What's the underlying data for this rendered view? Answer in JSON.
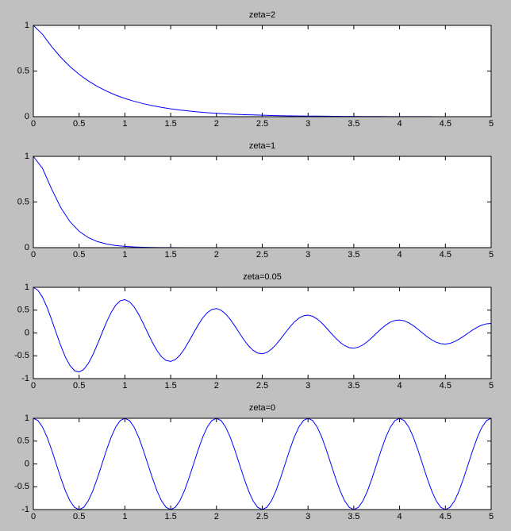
{
  "chart_data": [
    {
      "type": "line",
      "title": "zeta=2",
      "x": [
        0,
        0.1,
        0.2,
        0.3,
        0.4,
        0.5,
        0.6,
        0.7,
        0.8,
        0.9,
        1,
        1.1,
        1.2,
        1.3,
        1.4,
        1.5,
        1.6,
        1.7,
        1.8,
        1.9,
        2,
        2.1,
        2.2,
        2.3,
        2.4,
        2.5,
        2.6,
        2.7,
        2.8,
        2.9,
        3,
        3.1,
        3.2,
        3.3,
        3.4,
        3.5,
        3.6,
        3.7,
        3.8,
        3.9,
        4,
        4.1,
        4.2,
        4.3,
        4.4,
        4.5,
        4.6,
        4.7,
        4.8,
        4.9,
        5
      ],
      "series": [
        {
          "color": "#0000ff",
          "values": [
            1,
            0.903,
            0.768,
            0.65,
            0.549,
            0.464,
            0.392,
            0.331,
            0.28,
            0.236,
            0.2,
            0.169,
            0.143,
            0.121,
            0.102,
            0.086,
            0.073,
            0.062,
            0.052,
            0.044,
            0.037,
            0.031,
            0.026,
            0.022,
            0.019,
            0.016,
            0.013,
            0.011,
            0.009,
            0.008,
            0.007,
            0.006,
            0.005,
            0.004,
            0.003,
            0.003,
            0.002,
            0.002,
            0.002,
            0.001,
            0.001,
            0.001,
            0.001,
            0.001,
            0,
            0,
            0,
            0,
            0,
            0,
            0
          ]
        }
      ],
      "xlim": [
        0,
        5
      ],
      "ylim": [
        0,
        1
      ],
      "xticks": [
        0,
        0.5,
        1,
        1.5,
        2,
        2.5,
        3,
        3.5,
        4,
        4.5,
        5
      ],
      "yticks": [
        0,
        0.5,
        1
      ]
    },
    {
      "type": "line",
      "title": "zeta=1",
      "x": [
        0,
        0.1,
        0.2,
        0.3,
        0.4,
        0.5,
        0.6,
        0.7,
        0.8,
        0.9,
        1,
        1.1,
        1.2,
        1.3,
        1.4,
        1.5,
        1.6,
        1.7,
        1.8,
        1.9,
        2,
        2.1,
        2.2,
        2.3,
        2.4,
        2.5,
        2.6,
        2.7,
        2.8,
        2.9,
        3,
        3.1,
        3.2,
        3.3,
        3.4,
        3.5,
        3.6,
        3.7,
        3.8,
        3.9,
        4,
        4.1,
        4.2,
        4.3,
        4.4,
        4.5,
        4.6,
        4.7,
        4.8,
        4.9,
        5
      ],
      "series": [
        {
          "color": "#0000ff",
          "values": [
            1,
            0.869,
            0.642,
            0.438,
            0.285,
            0.179,
            0.11,
            0.066,
            0.04,
            0.023,
            0.014,
            0.008,
            0.004,
            0.002,
            0.001,
            0.001,
            0,
            0,
            0,
            0,
            0,
            0,
            0,
            0,
            0,
            0,
            0,
            0,
            0,
            0,
            0,
            0,
            0,
            0,
            0,
            0,
            0,
            0,
            0,
            0,
            0,
            0,
            0,
            0,
            0,
            0,
            0,
            0,
            0,
            0,
            0
          ]
        }
      ],
      "xlim": [
        0,
        5
      ],
      "ylim": [
        0,
        1
      ],
      "xticks": [
        0,
        0.5,
        1,
        1.5,
        2,
        2.5,
        3,
        3.5,
        4,
        4.5,
        5
      ],
      "yticks": [
        0,
        0.5,
        1
      ]
    },
    {
      "type": "line",
      "title": "zeta=0.05",
      "x": [
        0,
        0.05,
        0.1,
        0.15,
        0.2,
        0.25,
        0.3,
        0.35,
        0.4,
        0.45,
        0.5,
        0.55,
        0.6,
        0.65,
        0.7,
        0.75,
        0.8,
        0.85,
        0.9,
        0.95,
        1,
        1.05,
        1.1,
        1.15,
        1.2,
        1.25,
        1.3,
        1.35,
        1.4,
        1.45,
        1.5,
        1.55,
        1.6,
        1.65,
        1.7,
        1.75,
        1.8,
        1.85,
        1.9,
        1.95,
        2,
        2.05,
        2.1,
        2.15,
        2.2,
        2.25,
        2.3,
        2.35,
        2.4,
        2.45,
        2.5,
        2.55,
        2.6,
        2.65,
        2.7,
        2.75,
        2.8,
        2.85,
        2.9,
        2.95,
        3,
        3.05,
        3.1,
        3.15,
        3.2,
        3.25,
        3.3,
        3.35,
        3.4,
        3.45,
        3.5,
        3.55,
        3.6,
        3.65,
        3.7,
        3.75,
        3.8,
        3.85,
        3.9,
        3.95,
        4,
        4.05,
        4.1,
        4.15,
        4.2,
        4.25,
        4.3,
        4.35,
        4.4,
        4.45,
        4.5,
        4.55,
        4.6,
        4.65,
        4.7,
        4.75,
        4.8,
        4.85,
        4.9,
        4.95,
        5
      ],
      "series": [
        {
          "color": "#0000ff",
          "values": [
            1,
            0.936,
            0.784,
            0.561,
            0.29,
            0,
            -0.281,
            -0.527,
            -0.713,
            -0.826,
            -0.855,
            -0.8,
            -0.67,
            -0.479,
            -0.248,
            0,
            0.24,
            0.45,
            0.61,
            0.706,
            0.73,
            0.684,
            0.573,
            0.41,
            0.212,
            0,
            -0.205,
            -0.385,
            -0.521,
            -0.603,
            -0.624,
            -0.584,
            -0.489,
            -0.35,
            -0.181,
            0,
            0.175,
            0.329,
            0.446,
            0.516,
            0.534,
            0.499,
            0.418,
            0.299,
            0.155,
            0,
            -0.15,
            -0.281,
            -0.38,
            -0.441,
            -0.456,
            -0.427,
            -0.357,
            -0.256,
            -0.132,
            0,
            0.128,
            0.24,
            0.325,
            0.377,
            0.39,
            0.365,
            0.306,
            0.219,
            0.113,
            0,
            -0.11,
            -0.205,
            -0.278,
            -0.322,
            -0.333,
            -0.312,
            -0.261,
            -0.187,
            -0.097,
            0,
            0.094,
            0.175,
            0.238,
            0.275,
            0.285,
            0.266,
            0.223,
            0.16,
            0.083,
            0,
            -0.08,
            -0.15,
            -0.203,
            -0.235,
            -0.243,
            -0.228,
            -0.191,
            -0.136,
            -0.071,
            0,
            0.068,
            0.128,
            0.174,
            0.201,
            0.208
          ]
        }
      ],
      "xlim": [
        0,
        5
      ],
      "ylim": [
        -1,
        1
      ],
      "xticks": [
        0,
        0.5,
        1,
        1.5,
        2,
        2.5,
        3,
        3.5,
        4,
        4.5,
        5
      ],
      "yticks": [
        -1,
        -0.5,
        0,
        0.5,
        1
      ]
    },
    {
      "type": "line",
      "title": "zeta=0",
      "x": [
        0,
        0.05,
        0.1,
        0.15,
        0.2,
        0.25,
        0.3,
        0.35,
        0.4,
        0.45,
        0.5,
        0.55,
        0.6,
        0.65,
        0.7,
        0.75,
        0.8,
        0.85,
        0.9,
        0.95,
        1,
        1.05,
        1.1,
        1.15,
        1.2,
        1.25,
        1.3,
        1.35,
        1.4,
        1.45,
        1.5,
        1.55,
        1.6,
        1.65,
        1.7,
        1.75,
        1.8,
        1.85,
        1.9,
        1.95,
        2,
        2.05,
        2.1,
        2.15,
        2.2,
        2.25,
        2.3,
        2.35,
        2.4,
        2.45,
        2.5,
        2.55,
        2.6,
        2.65,
        2.7,
        2.75,
        2.8,
        2.85,
        2.9,
        2.95,
        3,
        3.05,
        3.1,
        3.15,
        3.2,
        3.25,
        3.3,
        3.35,
        3.4,
        3.45,
        3.5,
        3.55,
        3.6,
        3.65,
        3.7,
        3.75,
        3.8,
        3.85,
        3.9,
        3.95,
        4,
        4.05,
        4.1,
        4.15,
        4.2,
        4.25,
        4.3,
        4.35,
        4.4,
        4.45,
        4.5,
        4.55,
        4.6,
        4.65,
        4.7,
        4.75,
        4.8,
        4.85,
        4.9,
        4.95,
        5
      ],
      "series": [
        {
          "color": "#0000ff",
          "values": [
            1,
            0.951,
            0.809,
            0.588,
            0.309,
            0,
            -0.309,
            -0.588,
            -0.809,
            -0.951,
            -1,
            -0.951,
            -0.809,
            -0.588,
            -0.309,
            0,
            0.309,
            0.588,
            0.809,
            0.951,
            1,
            0.951,
            0.809,
            0.588,
            0.309,
            0,
            -0.309,
            -0.588,
            -0.809,
            -0.951,
            -1,
            -0.951,
            -0.809,
            -0.588,
            -0.309,
            0,
            0.309,
            0.588,
            0.809,
            0.951,
            1,
            0.951,
            0.809,
            0.588,
            0.309,
            0,
            -0.309,
            -0.588,
            -0.809,
            -0.951,
            -1,
            -0.951,
            -0.809,
            -0.588,
            -0.309,
            0,
            0.309,
            0.588,
            0.809,
            0.951,
            1,
            0.951,
            0.809,
            0.588,
            0.309,
            0,
            -0.309,
            -0.588,
            -0.809,
            -0.951,
            -1,
            -0.951,
            -0.809,
            -0.588,
            -0.309,
            0,
            0.309,
            0.588,
            0.809,
            0.951,
            1,
            0.951,
            0.809,
            0.588,
            0.309,
            0,
            -0.309,
            -0.588,
            -0.809,
            -0.951,
            -1,
            -0.951,
            -0.809,
            -0.588,
            -0.309,
            0,
            0.309,
            0.588,
            0.809,
            0.951,
            1
          ]
        }
      ],
      "xlim": [
        0,
        5
      ],
      "ylim": [
        -1,
        1
      ],
      "xticks": [
        0,
        0.5,
        1,
        1.5,
        2,
        2.5,
        3,
        3.5,
        4,
        4.5,
        5
      ],
      "yticks": [
        -1,
        -0.5,
        0,
        0.5,
        1
      ]
    }
  ]
}
